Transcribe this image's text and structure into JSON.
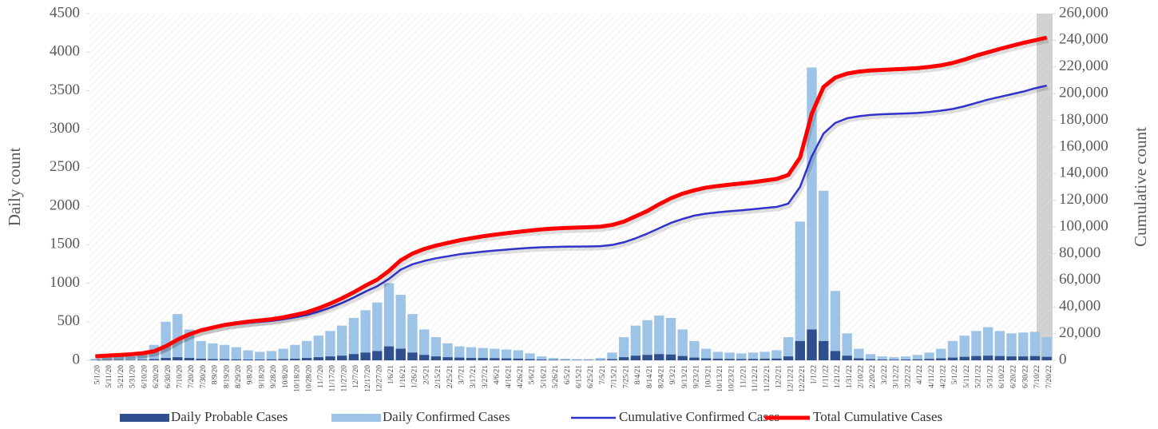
{
  "chart_data": {
    "type": "bar",
    "y_label": "Daily count",
    "y2_label": "Cumulative count",
    "categories": [
      "5/1/20",
      "5/11/20",
      "5/21/20",
      "5/31/20",
      "6/10/20",
      "6/20/20",
      "6/30/20",
      "7/10/20",
      "7/20/20",
      "7/30/20",
      "8/9/20",
      "8/19/20",
      "8/29/20",
      "9/8/20",
      "9/18/20",
      "9/28/20",
      "10/8/20",
      "10/18/20",
      "10/28/20",
      "11/7/20",
      "11/17/20",
      "11/27/20",
      "12/7/20",
      "12/17/20",
      "12/27/20",
      "1/6/21",
      "1/16/21",
      "1/26/21",
      "2/5/21",
      "2/15/21",
      "2/25/21",
      "3/7/21",
      "3/17/21",
      "3/27/21",
      "4/6/21",
      "4/16/21",
      "4/26/21",
      "5/6/21",
      "5/16/21",
      "5/26/21",
      "6/5/21",
      "6/15/21",
      "6/25/21",
      "7/5/21",
      "7/15/21",
      "7/25/21",
      "8/4/21",
      "8/14/21",
      "8/24/21",
      "9/3/21",
      "9/13/21",
      "9/23/21",
      "10/3/21",
      "10/13/21",
      "10/23/21",
      "11/2/21",
      "11/12/21",
      "11/22/21",
      "12/2/21",
      "12/12/21",
      "12/22/21",
      "1/1/22",
      "1/11/22",
      "1/21/22",
      "1/31/22",
      "2/10/22",
      "2/20/22",
      "3/2/22",
      "3/12/22",
      "3/22/22",
      "4/1/22",
      "4/11/22",
      "4/21/22",
      "5/1/22",
      "5/11/22",
      "5/21/22",
      "5/31/22",
      "6/10/22",
      "6/20/22",
      "6/30/22",
      "7/10/22",
      "7/20/22"
    ],
    "series": [
      {
        "name": "Daily Probable Cases",
        "type": "bar",
        "color": "#2f4f8f",
        "values": [
          2,
          3,
          5,
          5,
          8,
          15,
          30,
          40,
          30,
          20,
          15,
          15,
          12,
          10,
          10,
          12,
          15,
          20,
          30,
          40,
          50,
          60,
          80,
          100,
          120,
          180,
          150,
          100,
          70,
          50,
          40,
          35,
          30,
          30,
          28,
          25,
          22,
          15,
          10,
          6,
          4,
          3,
          3,
          5,
          15,
          40,
          60,
          70,
          80,
          75,
          55,
          35,
          25,
          20,
          18,
          16,
          18,
          20,
          22,
          50,
          250,
          400,
          250,
          120,
          60,
          25,
          15,
          10,
          8,
          10,
          12,
          18,
          25,
          35,
          45,
          55,
          60,
          55,
          50,
          50,
          55,
          45
        ]
      },
      {
        "name": "Daily Confirmed Cases",
        "type": "bar",
        "color": "#9dc3e6",
        "values": [
          20,
          40,
          60,
          50,
          80,
          200,
          500,
          600,
          400,
          250,
          220,
          200,
          170,
          130,
          110,
          120,
          150,
          200,
          250,
          320,
          380,
          450,
          550,
          650,
          750,
          1000,
          850,
          600,
          400,
          300,
          220,
          180,
          170,
          160,
          150,
          140,
          130,
          90,
          50,
          30,
          20,
          15,
          15,
          30,
          100,
          300,
          450,
          520,
          580,
          550,
          400,
          250,
          150,
          110,
          100,
          90,
          100,
          110,
          130,
          300,
          1800,
          3800,
          2200,
          900,
          350,
          150,
          80,
          50,
          40,
          50,
          70,
          100,
          150,
          250,
          320,
          380,
          430,
          380,
          350,
          360,
          370,
          300
        ]
      },
      {
        "name": "Cumulative Confirmed Cases",
        "type": "line",
        "axis": "y2",
        "color": "#3333cc",
        "values": [
          3000,
          3300,
          3800,
          4300,
          5000,
          6500,
          10000,
          15000,
          19000,
          22000,
          24000,
          25800,
          27000,
          28000,
          28800,
          29600,
          30800,
          32300,
          34000,
          36500,
          39500,
          43000,
          47000,
          51500,
          55500,
          61000,
          68000,
          72000,
          74500,
          76500,
          78000,
          79500,
          80500,
          81500,
          82300,
          83000,
          83700,
          84300,
          84800,
          85000,
          85200,
          85300,
          85400,
          85600,
          86500,
          88500,
          91500,
          95000,
          99000,
          103000,
          106000,
          108500,
          110000,
          111000,
          111800,
          112500,
          113300,
          114200,
          115000,
          117500,
          130000,
          153000,
          170000,
          178000,
          181500,
          183000,
          184000,
          184500,
          184800,
          185100,
          185500,
          186200,
          187200,
          188500,
          190500,
          193000,
          195500,
          197500,
          199500,
          201500,
          204000,
          206000
        ]
      },
      {
        "name": "Total Cumulative Cases",
        "type": "line",
        "axis": "y2",
        "color": "#ff0000",
        "values": [
          3000,
          3500,
          4000,
          4500,
          5300,
          6800,
          10500,
          15500,
          19500,
          22500,
          24500,
          26500,
          27800,
          29000,
          29900,
          30800,
          32200,
          34000,
          36000,
          39000,
          42500,
          46500,
          51000,
          56000,
          60500,
          67000,
          75000,
          80000,
          83500,
          86000,
          88000,
          90000,
          91500,
          93000,
          94200,
          95300,
          96300,
          97300,
          98200,
          98800,
          99200,
          99500,
          99800,
          100200,
          101500,
          104000,
          108000,
          112000,
          117000,
          121500,
          125000,
          127500,
          129500,
          130700,
          131700,
          132600,
          133600,
          134800,
          136000,
          139000,
          152000,
          185000,
          205000,
          212000,
          215000,
          216500,
          217300,
          217800,
          218200,
          218600,
          219100,
          220000,
          221200,
          223000,
          225500,
          228500,
          231000,
          233500,
          235800,
          238000,
          240000,
          242000
        ]
      }
    ],
    "ylim": [
      0,
      4500
    ],
    "yticks": [
      0,
      500,
      1000,
      1500,
      2000,
      2500,
      3000,
      3500,
      4000,
      4500
    ],
    "y2lim": [
      0,
      260000
    ],
    "y2ticks": [
      0,
      {
        "value": 20000,
        "label": "20,000"
      },
      {
        "value": 40000,
        "label": "40,000"
      },
      {
        "value": 60000,
        "label": "60,000"
      },
      {
        "value": 80000,
        "label": "80,000"
      },
      {
        "value": 100000,
        "label": "100,000"
      },
      {
        "value": 120000,
        "label": "120,000"
      },
      {
        "value": 140000,
        "label": "140,000"
      },
      {
        "value": 160000,
        "label": "160,000"
      },
      {
        "value": 180000,
        "label": "180,000"
      },
      {
        "value": 200000,
        "label": "200,000"
      },
      {
        "value": 220000,
        "label": "220,000"
      },
      {
        "value": 240000,
        "label": "240,000"
      },
      {
        "value": 260000,
        "label": "260,000"
      }
    ],
    "legend": "bottom"
  }
}
